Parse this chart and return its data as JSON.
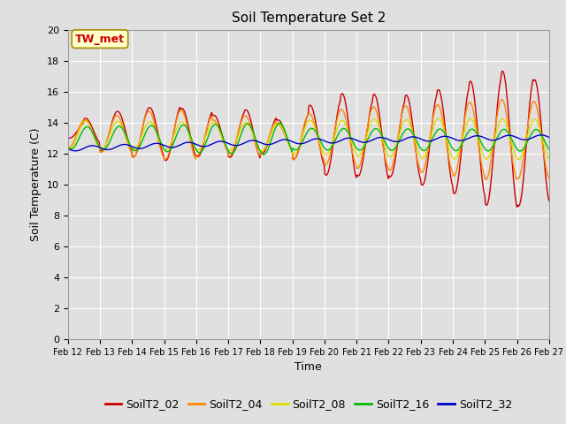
{
  "title": "Soil Temperature Set 2",
  "xlabel": "Time",
  "ylabel": "Soil Temperature (C)",
  "ylim": [
    0,
    20
  ],
  "yticks": [
    0,
    2,
    4,
    6,
    8,
    10,
    12,
    14,
    16,
    18,
    20
  ],
  "x_labels": [
    "Feb 12",
    "Feb 13",
    "Feb 14",
    "Feb 15",
    "Feb 16",
    "Feb 17",
    "Feb 18",
    "Feb 19",
    "Feb 20",
    "Feb 21",
    "Feb 22",
    "Feb 23",
    "Feb 24",
    "Feb 25",
    "Feb 26",
    "Feb 27"
  ],
  "series_names": [
    "SoilT2_02",
    "SoilT2_04",
    "SoilT2_08",
    "SoilT2_16",
    "SoilT2_32"
  ],
  "series_colors": [
    "#cc0000",
    "#ff8800",
    "#dddd00",
    "#00bb00",
    "#0000cc"
  ],
  "annotation_text": "TW_met",
  "annotation_color": "#cc0000",
  "annotation_bg": "#ffffcc",
  "background_color": "#e0e0e0",
  "grid_color": "#ffffff",
  "title_fontsize": 11,
  "label_fontsize": 9,
  "tick_fontsize": 8,
  "legend_fontsize": 9,
  "n_points": 720
}
